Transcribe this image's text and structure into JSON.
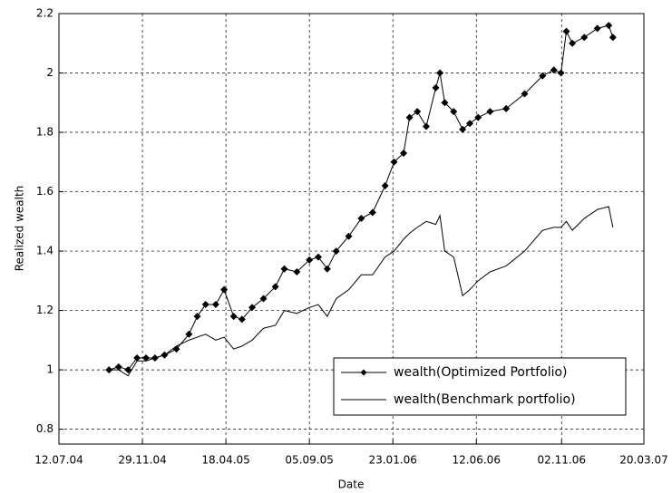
{
  "chart_data": {
    "type": "line",
    "xlabel": "Date",
    "ylabel": "Realized wealth",
    "x": [
      "2004-10-04",
      "2004-10-20",
      "2004-11-05",
      "2004-11-20",
      "2004-12-05",
      "2004-12-20",
      "2005-01-05",
      "2005-01-25",
      "2005-02-15",
      "2005-03-01",
      "2005-03-15",
      "2005-04-01",
      "2005-04-15",
      "2005-05-01",
      "2005-05-15",
      "2005-06-01",
      "2005-06-20",
      "2005-07-10",
      "2005-07-25",
      "2005-08-15",
      "2005-09-05",
      "2005-09-20",
      "2005-10-05",
      "2005-10-20",
      "2005-11-10",
      "2005-12-01",
      "2005-12-20",
      "2006-01-10",
      "2006-01-25",
      "2006-02-10",
      "2006-02-20",
      "2006-03-05",
      "2006-03-20",
      "2006-04-05",
      "2006-04-12",
      "2006-04-20",
      "2006-05-05",
      "2006-05-20",
      "2006-06-01",
      "2006-06-15",
      "2006-07-05",
      "2006-08-01",
      "2006-09-01",
      "2006-10-01",
      "2006-10-20",
      "2006-11-01",
      "2006-11-10",
      "2006-11-20",
      "2006-12-10",
      "2007-01-01",
      "2007-01-20",
      "2007-01-27"
    ],
    "series": [
      {
        "name": "wealth(Optimized Portfolio)",
        "color": "#000000",
        "marker": "diamond",
        "values": [
          1.0,
          1.01,
          1.0,
          1.04,
          1.04,
          1.04,
          1.05,
          1.07,
          1.12,
          1.18,
          1.22,
          1.22,
          1.27,
          1.18,
          1.17,
          1.21,
          1.24,
          1.28,
          1.34,
          1.33,
          1.37,
          1.38,
          1.34,
          1.4,
          1.45,
          1.51,
          1.53,
          1.62,
          1.7,
          1.73,
          1.85,
          1.87,
          1.82,
          1.95,
          2.0,
          1.9,
          1.87,
          1.81,
          1.83,
          1.85,
          1.87,
          1.88,
          1.93,
          1.99,
          2.01,
          2.0,
          2.14,
          2.1,
          2.12,
          2.15,
          2.16,
          2.12
        ]
      },
      {
        "name": "wealth(Benchmark portfolio)",
        "color": "#000000",
        "values": [
          1.0,
          1.0,
          0.98,
          1.03,
          1.03,
          1.04,
          1.05,
          1.08,
          1.1,
          1.11,
          1.12,
          1.1,
          1.11,
          1.07,
          1.08,
          1.1,
          1.14,
          1.15,
          1.2,
          1.19,
          1.21,
          1.22,
          1.18,
          1.24,
          1.27,
          1.32,
          1.32,
          1.38,
          1.4,
          1.44,
          1.46,
          1.48,
          1.5,
          1.49,
          1.52,
          1.4,
          1.38,
          1.25,
          1.27,
          1.3,
          1.33,
          1.35,
          1.4,
          1.47,
          1.48,
          1.48,
          1.5,
          1.47,
          1.51,
          1.54,
          1.55,
          1.48
        ]
      }
    ],
    "xlim": [
      "2004-07-12",
      "2007-03-20"
    ],
    "xticks": [
      {
        "value": "2004-07-12",
        "label": "12.07.04"
      },
      {
        "value": "2004-11-29",
        "label": "29.11.04"
      },
      {
        "value": "2005-04-18",
        "label": "18.04.05"
      },
      {
        "value": "2005-09-05",
        "label": "05.09.05"
      },
      {
        "value": "2006-01-23",
        "label": "23.01.06"
      },
      {
        "value": "2006-06-12",
        "label": "12.06.06"
      },
      {
        "value": "2006-11-02",
        "label": "02.11.06"
      },
      {
        "value": "2007-03-20",
        "label": "20.03.07"
      }
    ],
    "ylim": [
      0.75,
      2.2
    ],
    "yticks": [
      0.8,
      1,
      1.2,
      1.4,
      1.6,
      1.8,
      2,
      2.2
    ],
    "grid": true,
    "legend": "lower right"
  }
}
